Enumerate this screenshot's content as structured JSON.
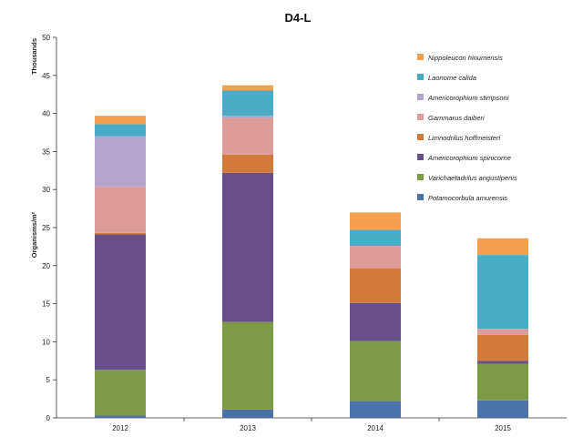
{
  "chart_data": {
    "type": "bar",
    "stacked": true,
    "title": "D4-L",
    "ylabel": "Organisms/m²",
    "ylabel_secondary": "Thousands",
    "xlabel": "",
    "ylim": [
      0,
      50
    ],
    "yticks": [
      0,
      5,
      10,
      15,
      20,
      25,
      30,
      35,
      40,
      45,
      50
    ],
    "grid": false,
    "legend_placement": "right",
    "categories": [
      "2012",
      "2013",
      "2014",
      "2015"
    ],
    "series": [
      {
        "name": "Potamocorbula amurensis",
        "color": "#4a72a8",
        "values": [
          0.3,
          1.1,
          2.2,
          2.3
        ]
      },
      {
        "name": "Varichaetadrilus angustipenis",
        "color": "#7f9a45",
        "values": [
          6.0,
          11.5,
          7.9,
          4.8
        ]
      },
      {
        "name": "Americorophium spinicorne",
        "color": "#67508a",
        "values": [
          17.8,
          19.6,
          5.0,
          0.4
        ]
      },
      {
        "name": "Limnodrilus hoffmeisteri",
        "color": "#d27a3a",
        "values": [
          0.2,
          2.4,
          4.6,
          3.4
        ]
      },
      {
        "name": "Gammarus daiberi",
        "color": "#de9c99",
        "values": [
          6.1,
          4.8,
          2.9,
          0.8
        ]
      },
      {
        "name": "Americorophium stimpsoni",
        "color": "#b3a5c9",
        "values": [
          6.6,
          0.3,
          0.0,
          0.0
        ]
      },
      {
        "name": "Laonome calida",
        "color": "#48acc6",
        "values": [
          1.6,
          3.3,
          2.1,
          9.7
        ]
      },
      {
        "name": "Nippoleucon hinumensis",
        "color": "#f4a04e",
        "values": [
          1.1,
          0.7,
          2.3,
          2.2
        ]
      }
    ]
  }
}
